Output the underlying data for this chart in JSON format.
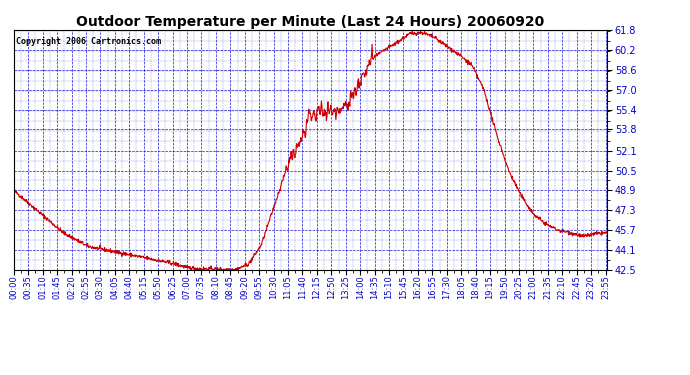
{
  "title": "Outdoor Temperature per Minute (Last 24 Hours) 20060920",
  "copyright": "Copyright 2006 Cartronics.com",
  "line_color": "#cc0000",
  "bg_color": "#ffffff",
  "grid_color": "#0000cc",
  "axis_color": "#0000cc",
  "text_color": "#000000",
  "yticks": [
    42.5,
    44.1,
    45.7,
    47.3,
    48.9,
    50.5,
    52.1,
    53.8,
    55.4,
    57.0,
    58.6,
    60.2,
    61.8
  ],
  "ymin": 42.5,
  "ymax": 61.8,
  "xtick_labels": [
    "00:00",
    "00:35",
    "01:10",
    "01:45",
    "02:20",
    "02:55",
    "03:30",
    "04:05",
    "04:40",
    "05:15",
    "05:50",
    "06:25",
    "07:00",
    "07:35",
    "08:10",
    "08:45",
    "09:20",
    "09:55",
    "10:30",
    "11:05",
    "11:40",
    "12:15",
    "12:50",
    "13:25",
    "14:00",
    "14:35",
    "15:10",
    "15:45",
    "16:20",
    "16:55",
    "17:30",
    "18:05",
    "18:40",
    "19:15",
    "19:50",
    "20:25",
    "21:00",
    "21:35",
    "22:10",
    "22:45",
    "23:20",
    "23:55"
  ],
  "keypoints_min": [
    0,
    60,
    120,
    180,
    240,
    300,
    360,
    390,
    420,
    450,
    480,
    510,
    540,
    570,
    600,
    630,
    660,
    690,
    720,
    750,
    780,
    810,
    840,
    870,
    900,
    930,
    960,
    990,
    1020,
    1050,
    1080,
    1110,
    1140,
    1170,
    1200,
    1230,
    1260,
    1290,
    1320,
    1350,
    1380,
    1410,
    1439
  ],
  "keypoints_temp": [
    48.9,
    47.2,
    45.5,
    44.4,
    44.0,
    43.6,
    43.2,
    43.0,
    42.7,
    42.6,
    42.58,
    42.55,
    42.55,
    43.0,
    44.5,
    47.5,
    50.5,
    52.5,
    54.8,
    55.4,
    55.2,
    56.0,
    57.5,
    59.5,
    60.2,
    60.8,
    61.5,
    61.6,
    61.2,
    60.5,
    59.8,
    59.0,
    57.0,
    53.5,
    50.5,
    48.5,
    47.0,
    46.2,
    45.7,
    45.5,
    45.2,
    45.4,
    45.5
  ]
}
